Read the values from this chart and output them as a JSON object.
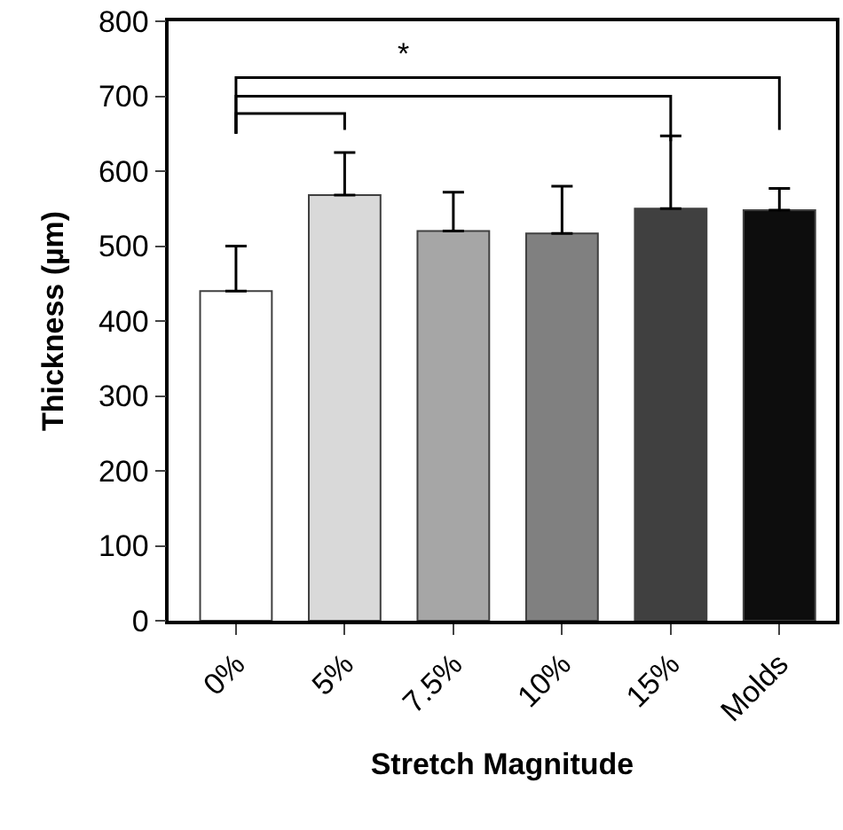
{
  "chart_data": {
    "type": "bar",
    "xlabel": "Stretch Magnitude",
    "ylabel": "Thickness (µm)",
    "categories": [
      "0%",
      "5%",
      "7.5%",
      "10%",
      "15%",
      "Molds"
    ],
    "values": [
      440,
      568,
      520,
      517,
      550,
      548
    ],
    "errors": [
      [
        440,
        500
      ],
      [
        568,
        625
      ],
      [
        520,
        572
      ],
      [
        517,
        580
      ],
      [
        550,
        647
      ],
      [
        548,
        577
      ]
    ],
    "colors": [
      "#ffffff",
      "#d9d9d9",
      "#a6a6a6",
      "#808080",
      "#404040",
      "#0d0d0d"
    ],
    "ylim": [
      0,
      800
    ],
    "yticks": [
      0,
      100,
      200,
      300,
      400,
      500,
      600,
      700,
      800
    ],
    "annotations": [
      "*"
    ],
    "legend": false
  }
}
